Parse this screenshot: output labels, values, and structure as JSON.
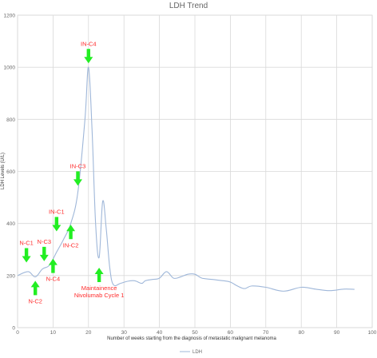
{
  "chart_data": {
    "type": "line",
    "title": "LDH Trend",
    "xlabel": "Number of weeks starting from the diagnosis of metastatic malignant melanoma",
    "ylabel": "LDH Levels (U/L)",
    "xlim": [
      0,
      100
    ],
    "ylim": [
      0,
      1200
    ],
    "x_ticks": [
      0,
      10,
      20,
      30,
      40,
      50,
      60,
      70,
      80,
      90,
      100
    ],
    "y_ticks": [
      0,
      200,
      400,
      600,
      800,
      1000,
      1200
    ],
    "x_tick_labels": [
      "0",
      "10",
      "20",
      "30",
      "40",
      "50",
      "60",
      "70",
      "80",
      "90",
      "100"
    ],
    "y_tick_labels": [
      "0",
      "200",
      "400",
      "600",
      "800",
      "1000",
      "1200"
    ],
    "grid": true,
    "legend_position": "bottom-center",
    "series": [
      {
        "name": "LDH",
        "color": "#9fb7d9",
        "points": [
          [
            0,
            200
          ],
          [
            3,
            215
          ],
          [
            5,
            195
          ],
          [
            7,
            225
          ],
          [
            9,
            240
          ],
          [
            11,
            290
          ],
          [
            13,
            340
          ],
          [
            15,
            400
          ],
          [
            17,
            520
          ],
          [
            19,
            800
          ],
          [
            20,
            1000
          ],
          [
            21,
            760
          ],
          [
            22,
            400
          ],
          [
            23,
            270
          ],
          [
            24,
            485
          ],
          [
            25,
            380
          ],
          [
            26,
            230
          ],
          [
            27,
            165
          ],
          [
            29,
            170
          ],
          [
            31,
            178
          ],
          [
            33,
            180
          ],
          [
            35,
            170
          ],
          [
            36,
            180
          ],
          [
            38,
            185
          ],
          [
            40,
            190
          ],
          [
            42,
            215
          ],
          [
            44,
            190
          ],
          [
            46,
            195
          ],
          [
            48,
            205
          ],
          [
            50,
            205
          ],
          [
            52,
            190
          ],
          [
            55,
            185
          ],
          [
            58,
            180
          ],
          [
            60,
            175
          ],
          [
            62,
            160
          ],
          [
            64,
            150
          ],
          [
            66,
            160
          ],
          [
            70,
            155
          ],
          [
            75,
            140
          ],
          [
            80,
            155
          ],
          [
            84,
            148
          ],
          [
            88,
            142
          ],
          [
            92,
            148
          ],
          [
            95,
            147
          ]
        ]
      }
    ],
    "annotations": [
      {
        "label": "N-C1",
        "x": 2.5,
        "y": 250,
        "direction": "down"
      },
      {
        "label": "N-C2",
        "x": 5,
        "y": 180,
        "direction": "up"
      },
      {
        "label": "N-C3",
        "x": 7.5,
        "y": 255,
        "direction": "down"
      },
      {
        "label": "N-C4",
        "x": 10,
        "y": 265,
        "direction": "up"
      },
      {
        "label": "IN-C1",
        "x": 11,
        "y": 370,
        "direction": "down"
      },
      {
        "label": "IN-C2",
        "x": 15,
        "y": 395,
        "direction": "up"
      },
      {
        "label": "IN-C3",
        "x": 17,
        "y": 545,
        "direction": "down"
      },
      {
        "label": "IN-C4",
        "x": 20,
        "y": 1015,
        "direction": "down"
      },
      {
        "label": "Maintainence\nNivolumab Cycle 1",
        "x": 23,
        "y": 230,
        "direction": "up"
      }
    ],
    "colors": {
      "line": "#9fb7d9",
      "arrow": "#22ee22",
      "annotation_text": "#ff2b2b",
      "grid": "#d9d9d9"
    }
  }
}
